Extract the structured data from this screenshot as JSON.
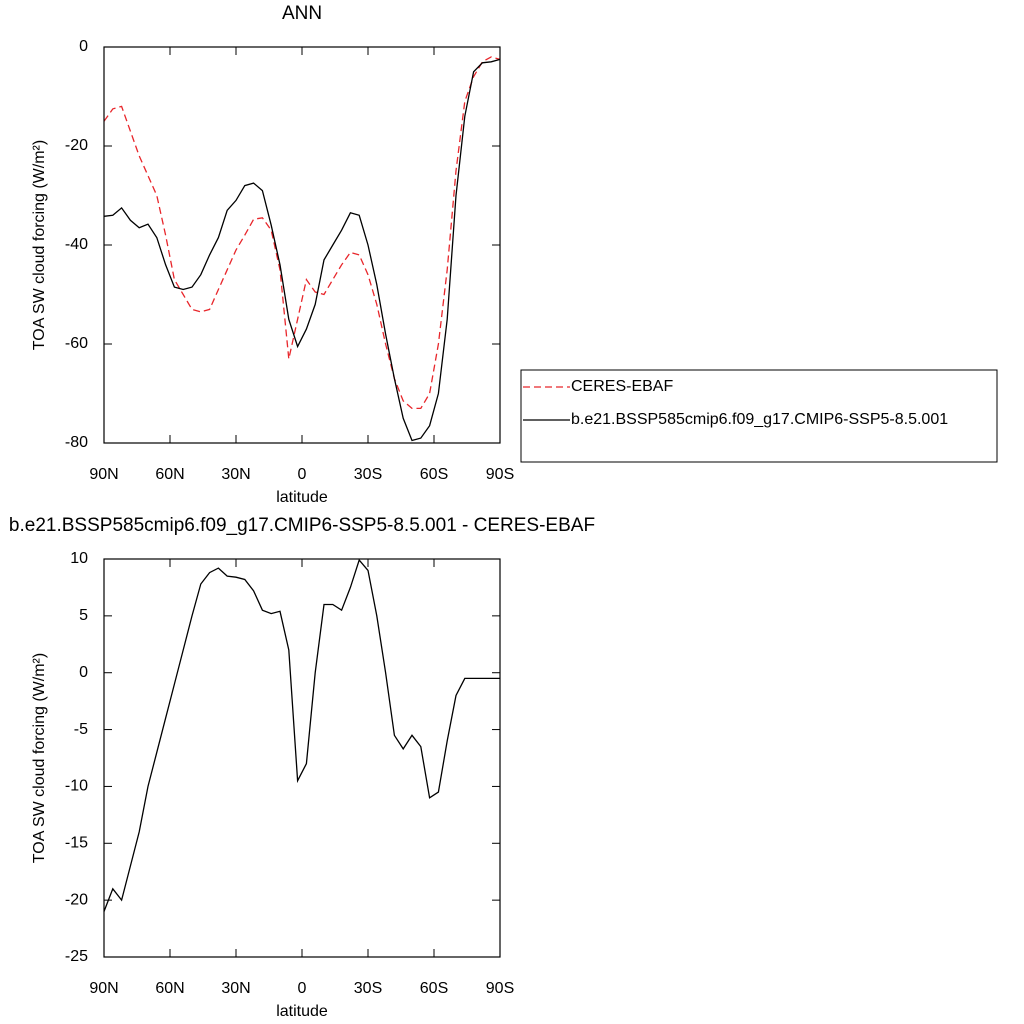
{
  "chart_data": [
    {
      "type": "line",
      "title": "ANN",
      "xlabel": "latitude",
      "ylabel": "TOA SW cloud forcing (W/m²)",
      "x": [
        90,
        86,
        82,
        78,
        74,
        70,
        66,
        62,
        58,
        54,
        50,
        46,
        42,
        38,
        34,
        30,
        26,
        22,
        18,
        14,
        10,
        6,
        2,
        -2,
        -6,
        -10,
        -14,
        -18,
        -22,
        -26,
        -30,
        -34,
        -38,
        -42,
        -46,
        -50,
        -54,
        -58,
        -62,
        -66,
        -70,
        -74,
        -78,
        -82,
        -86,
        -90
      ],
      "xlim": [
        90,
        -90
      ],
      "xticks": [
        {
          "value": 90,
          "label": "90N"
        },
        {
          "value": 60,
          "label": "60N"
        },
        {
          "value": 30,
          "label": "30N"
        },
        0,
        {
          "value": -30,
          "label": "30S"
        },
        {
          "value": -60,
          "label": "60S"
        },
        {
          "value": -90,
          "label": "90S"
        }
      ],
      "ylim": [
        -80,
        0
      ],
      "yticks": [
        0,
        -20,
        -40,
        -60,
        -80
      ],
      "legend": "right",
      "series": [
        {
          "name": "CERES-EBAF",
          "color": "#e8262b",
          "dash": true,
          "values": [
            -15,
            -12.5,
            -12,
            -17,
            -22,
            -26,
            -30,
            -38,
            -47,
            -50,
            -53,
            -53.5,
            -53,
            -49,
            -45,
            -41,
            -38,
            -34.8,
            -34.5,
            -37,
            -45,
            -63,
            -55,
            -47,
            -49.5,
            -50,
            -47,
            -44,
            -41.5,
            -42,
            -46,
            -52,
            -60,
            -67,
            -71.5,
            -73,
            -73,
            -70,
            -60,
            -45,
            -25,
            -11,
            -6,
            -3,
            -2,
            -2.5
          ]
        },
        {
          "name": "b.e21.BSSP585cmip6.f09_g17.CMIP6-SSP5-8.5.001",
          "color": "#000000",
          "dash": false,
          "values": [
            -34.2,
            -34,
            -32.5,
            -35,
            -36.5,
            -35.8,
            -38.5,
            -44,
            -48.5,
            -49,
            -48.5,
            -46,
            -42,
            -38.5,
            -33,
            -31,
            -28,
            -27.5,
            -29,
            -36,
            -44,
            -55,
            -60.5,
            -57,
            -52,
            -43,
            -40,
            -37,
            -33.5,
            -34,
            -40,
            -48,
            -58,
            -67,
            -75,
            -79.5,
            -79,
            -76.5,
            -70,
            -55,
            -30,
            -14,
            -5,
            -3.2,
            -3,
            -2.5
          ]
        }
      ]
    },
    {
      "type": "line",
      "title": "b.e21.BSSP585cmip6.f09_g17.CMIP6-SSP5-8.5.001 - CERES-EBAF",
      "xlabel": "latitude",
      "ylabel": "TOA SW cloud forcing (W/m²)",
      "x": [
        90,
        86,
        82,
        78,
        74,
        70,
        66,
        62,
        58,
        54,
        50,
        46,
        42,
        38,
        34,
        30,
        26,
        22,
        18,
        14,
        10,
        6,
        2,
        -2,
        -6,
        -10,
        -14,
        -18,
        -22,
        -26,
        -30,
        -34,
        -38,
        -42,
        -46,
        -50,
        -54,
        -58,
        -62,
        -66,
        -70,
        -74,
        -78,
        -82,
        -86,
        -90
      ],
      "xlim": [
        90,
        -90
      ],
      "xticks": [
        {
          "value": 90,
          "label": "90N"
        },
        {
          "value": 60,
          "label": "60N"
        },
        {
          "value": 30,
          "label": "30N"
        },
        0,
        {
          "value": -30,
          "label": "30S"
        },
        {
          "value": -60,
          "label": "60S"
        },
        {
          "value": -90,
          "label": "90S"
        }
      ],
      "ylim": [
        -25,
        10
      ],
      "yticks": [
        10,
        5,
        0,
        -5,
        -10,
        -15,
        -20,
        -25
      ],
      "color": "#000000",
      "values": [
        -21,
        -19,
        -20,
        -17,
        -14,
        -10,
        -7,
        -4,
        -1,
        2,
        5,
        7.8,
        8.8,
        9.2,
        8.5,
        8.4,
        8.2,
        7.2,
        5.5,
        5.2,
        5.4,
        2,
        -9.5,
        -8,
        0,
        6,
        6,
        5.5,
        7.5,
        9.9,
        9,
        5,
        0,
        -5.5,
        -6.7,
        -5.5,
        -6.5,
        -11,
        -10.5,
        -6,
        -2,
        -0.5,
        -0.5,
        -0.5,
        -0.5,
        -0.5
      ]
    }
  ]
}
